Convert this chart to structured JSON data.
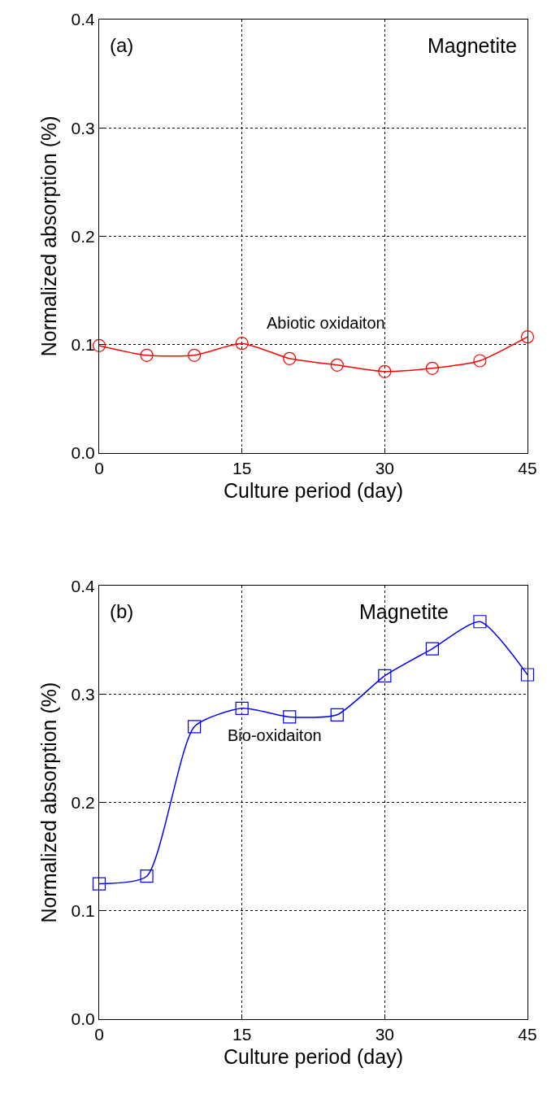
{
  "chart_data": [
    {
      "type": "line",
      "xlabel": "Culture period (day)",
      "ylabel": "Normalized absorption (%)",
      "x": [
        0,
        5,
        10,
        15,
        20,
        25,
        30,
        35,
        40,
        45
      ],
      "series": [
        {
          "color": "#ff0000",
          "values": [
            0.099,
            0.09,
            0.09,
            0.101,
            0.087,
            0.081,
            0.075,
            0.078,
            0.085,
            0.107
          ]
        }
      ],
      "xlim": [
        0,
        45
      ],
      "xticks": [
        0,
        15,
        30,
        45
      ],
      "ylim": [
        0,
        0.4
      ],
      "yticks": [
        {
          "value": 0,
          "label": "0.0"
        },
        0.1,
        0.2,
        0.3,
        0.4
      ],
      "grid": true,
      "marker": "circle",
      "line_style": "solid",
      "annotations": [
        "(a)",
        "Magnetite",
        "Abiotic oxidaiton"
      ]
    },
    {
      "type": "line",
      "xlabel": "Culture period (day)",
      "ylabel": "Normalized absorption (%)",
      "x": [
        0,
        5,
        10,
        15,
        20,
        25,
        30,
        35,
        40,
        45
      ],
      "series": [
        {
          "color": "#0000ff",
          "values": [
            0.125,
            0.132,
            0.27,
            0.287,
            0.279,
            0.281,
            0.317,
            0.342,
            0.367,
            0.318
          ]
        }
      ],
      "xlim": [
        0,
        45
      ],
      "xticks": [
        0,
        15,
        30,
        45
      ],
      "ylim": [
        0,
        0.4
      ],
      "yticks": [
        {
          "value": 0,
          "label": "0.0"
        },
        0.1,
        0.2,
        0.3,
        0.4
      ],
      "grid": true,
      "marker": "square",
      "line_style": "solid",
      "annotations": [
        "(b)",
        "Magnetite",
        "Bio-oxidaiton"
      ]
    }
  ]
}
